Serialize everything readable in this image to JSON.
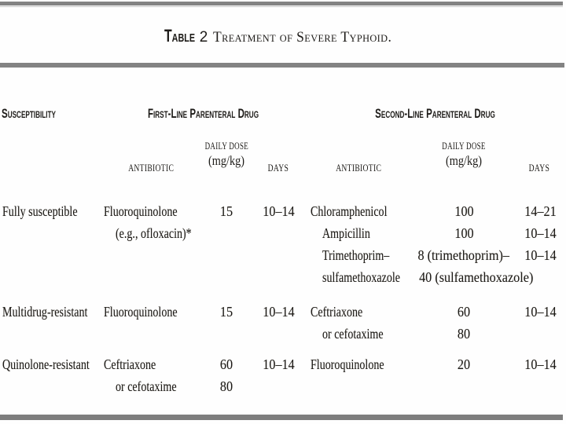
{
  "page": {
    "background_color": "#ffffff",
    "rule_color": "#838383",
    "text_color": "#1d1b18"
  },
  "title": {
    "label": "Table",
    "number": "2",
    "caption": "Treatment of Severe Typhoid."
  },
  "header": {
    "susceptibility": "Susceptibility",
    "first_line_group": "First-Line Parenteral Drug",
    "second_line_group": "Second-Line Parenteral Drug",
    "antibiotic": "ANTIBIOTIC",
    "daily_dose": "DAILY DOSE",
    "dose_unit": "(mg/kg)",
    "days": "DAYS"
  },
  "rows": [
    {
      "susceptibility": "Fully susceptible",
      "first": {
        "antibiotic_lines": [
          "Fluoroquinolone",
          "(e.g., ofloxacin)*"
        ],
        "dose_lines": [
          "15"
        ],
        "days_lines": [
          "10–14"
        ]
      },
      "second": {
        "antibiotic_lines": [
          "Chloramphenicol",
          "Ampicillin",
          "Trimethoprim–",
          "sulfamethoxazole"
        ],
        "dose_lines": [
          "100",
          "100",
          "8 (trimethoprim)–",
          "40 (sulfamethoxazole)"
        ],
        "days_lines": [
          "14–21",
          "10–14",
          "10–14"
        ]
      }
    },
    {
      "susceptibility": "Multidrug-resistant",
      "first": {
        "antibiotic_lines": [
          "Fluoroquinolone"
        ],
        "dose_lines": [
          "15"
        ],
        "days_lines": [
          "10–14"
        ]
      },
      "second": {
        "antibiotic_lines": [
          "Ceftriaxone",
          "or cefotaxime"
        ],
        "dose_lines": [
          "60",
          "80"
        ],
        "days_lines": [
          "10–14"
        ]
      }
    },
    {
      "susceptibility": "Quinolone-resistant",
      "first": {
        "antibiotic_lines": [
          "Ceftriaxone",
          "or cefotaxime"
        ],
        "dose_lines": [
          "60",
          "80"
        ],
        "days_lines": [
          "10–14"
        ]
      },
      "second": {
        "antibiotic_lines": [
          "Fluoroquinolone"
        ],
        "dose_lines": [
          "20"
        ],
        "days_lines": [
          "10–14"
        ]
      }
    }
  ]
}
